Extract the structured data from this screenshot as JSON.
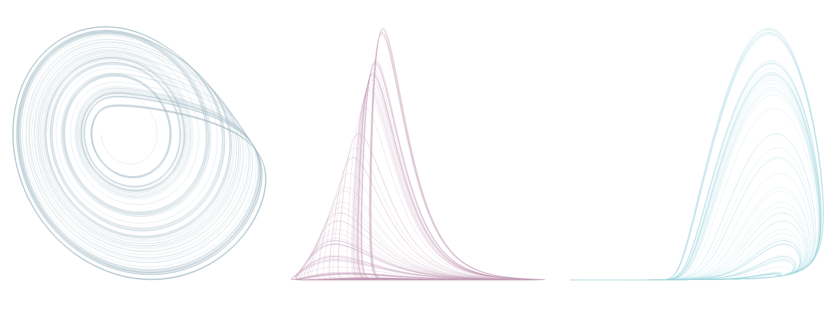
{
  "panels": [
    {
      "color": "#9fb8c3"
    },
    {
      "color": "#c29ab3"
    },
    {
      "color": "#9fd6de"
    }
  ]
}
